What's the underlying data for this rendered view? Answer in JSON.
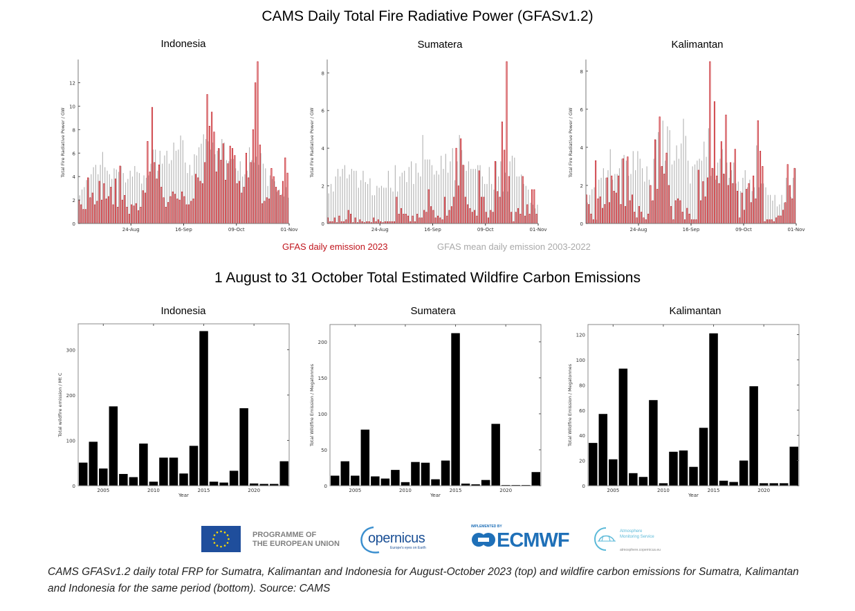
{
  "header": {
    "title": "CAMS Daily Total Fire Radiative Power (GFASv1.2)",
    "subtitle": "1 August to 31 October Total Estimated Wildfire Carbon Emissions"
  },
  "legend": {
    "series_2023": "GFAS daily emission 2023",
    "series_mean": "GFAS mean daily emission 2003-2022",
    "color_2023": "#c0141c",
    "color_2023_fill": "#e89a9c",
    "color_mean": "#b5b5b5"
  },
  "logos": {
    "eu_line1": "PROGRAMME OF",
    "eu_line2": "THE EUROPEAN UNION",
    "copernicus": "opernicus",
    "copernicus_tag": "Europe's eyes on Earth",
    "ecmwf_impl": "IMPLEMENTED BY",
    "ecmwf": "ECMWF",
    "ams_line1": "Atmosphere",
    "ams_line2": "Monitoring Service",
    "ams_url": "atmosphere.copernicus.eu"
  },
  "caption": "CAMS GFASv1.2 daily total FRP for Sumatra, Kalimantan and Indonesia for August-October 2023 (top) and wildfire carbon emissions for Sumatra, Kalimantan and Indonesia for the same period (bottom). Source: CAMS",
  "chart_data": [
    {
      "type": "bar",
      "title": "Indonesia",
      "xlabel": "",
      "ylabel": "Total Fire Radiative Power / GW",
      "ylim": [
        0,
        13.8
      ],
      "yticks": [
        0,
        2,
        4,
        6,
        8,
        10,
        12
      ],
      "xticks": [
        {
          "label": "24-Aug",
          "day": 23
        },
        {
          "label": "16-Sep",
          "day": 46
        },
        {
          "label": "09-Oct",
          "day": 69
        },
        {
          "label": "01-Nov",
          "day": 92
        }
      ],
      "days": 92,
      "series": [
        {
          "name": "GFAS mean daily emission 2003-2022",
          "values": [
            2.4,
            2.9,
            3.1,
            3.7,
            3.9,
            4.2,
            4.8,
            5.0,
            4.2,
            5.0,
            6.1,
            4.8,
            4.5,
            4.2,
            3.8,
            4.7,
            4.6,
            4.4,
            4.9,
            4.3,
            3.5,
            3.8,
            4.5,
            4.0,
            4.9,
            4.4,
            4.3,
            3.4,
            4.1,
            3.9,
            4.1,
            5.1,
            6.3,
            6.3,
            4.5,
            6.2,
            5.1,
            5.8,
            6.2,
            5.1,
            5.4,
            6.9,
            6.2,
            6.3,
            7.5,
            7.1,
            5.2,
            4.3,
            5.0,
            4.1,
            5.9,
            5.8,
            6.5,
            6.8,
            7.6,
            7.2,
            7.0,
            6.3,
            6.9,
            5.9,
            6.2,
            6.4,
            7.2,
            6.9,
            5.4,
            5.3,
            5.5,
            5.5,
            4.7,
            4.5,
            5.3,
            4.0,
            4.2,
            4.5,
            6.5,
            5.4,
            5.2,
            5.7,
            5.0,
            6.0,
            5.1,
            4.7,
            3.2,
            4.1,
            3.8,
            3.6,
            2.7,
            2.9,
            2.5,
            2.3,
            3.1,
            2.2
          ]
        },
        {
          "name": "GFAS daily emission 2023",
          "values": [
            2.0,
            1.6,
            1.2,
            1.2,
            3.9,
            2.2,
            2.6,
            1.6,
            1.9,
            3.6,
            2.0,
            3.4,
            2.1,
            2.3,
            3.1,
            1.6,
            3.8,
            1.4,
            4.9,
            2.0,
            2.4,
            1.4,
            0.8,
            1.6,
            1.5,
            1.7,
            1.1,
            1.4,
            2.8,
            2.6,
            7.0,
            4.4,
            9.9,
            5.2,
            3.8,
            5.0,
            3.1,
            2.2,
            1.4,
            1.8,
            2.3,
            2.7,
            2.5,
            2.1,
            2.0,
            2.7,
            2.3,
            1.6,
            1.6,
            1.9,
            2.1,
            4.2,
            3.9,
            3.6,
            3.4,
            5.2,
            11.0,
            8.3,
            9.5,
            7.8,
            4.4,
            6.4,
            5.4,
            6.8,
            3.7,
            5.1,
            6.6,
            6.4,
            5.8,
            3.4,
            3.6,
            2.6,
            3.1,
            6.0,
            3.9,
            5.2,
            8.0,
            12.0,
            13.8,
            6.7,
            1.7,
            1.9,
            2.2,
            2.1,
            4.7,
            4.0,
            3.1,
            2.8,
            2.4,
            3.6,
            5.6,
            4.3
          ]
        }
      ]
    },
    {
      "type": "bar",
      "title": "Sumatera",
      "xlabel": "",
      "ylabel": "Total Fire Radiative Power / GW",
      "ylim": [
        0,
        8.6
      ],
      "yticks": [
        0,
        2,
        4,
        6,
        8
      ],
      "xticks": [
        {
          "label": "24-Aug",
          "day": 23
        },
        {
          "label": "16-Sep",
          "day": 46
        },
        {
          "label": "09-Oct",
          "day": 69
        },
        {
          "label": "01-Nov",
          "day": 92
        }
      ],
      "days": 92,
      "series": [
        {
          "name": "GFAS mean daily emission 2003-2022",
          "values": [
            1.6,
            2.1,
            1.7,
            2.5,
            2.9,
            2.5,
            2.9,
            3.1,
            2.4,
            2.6,
            2.9,
            2.8,
            2.8,
            1.9,
            2.3,
            2.8,
            2.2,
            2.1,
            2.4,
            1.5,
            1.5,
            2.0,
            1.9,
            2.0,
            1.9,
            1.9,
            2.8,
            1.9,
            1.7,
            3.1,
            1.7,
            2.5,
            2.7,
            2.8,
            2.2,
            3.0,
            3.3,
            2.1,
            3.2,
            2.7,
            2.5,
            4.7,
            3.4,
            3.4,
            3.4,
            3.1,
            2.6,
            2.8,
            2.6,
            3.6,
            2.9,
            3.7,
            2.7,
            3.3,
            4.0,
            2.3,
            3.3,
            4.7,
            3.9,
            3.1,
            2.8,
            3.3,
            2.9,
            2.9,
            2.9,
            3.1,
            3.1,
            2.5,
            2.1,
            2.1,
            3.0,
            2.1,
            1.8,
            3.3,
            2.5,
            3.3,
            1.7,
            2.7,
            1.7,
            3.3,
            3.6,
            3.5,
            2.5,
            2.5,
            2.6,
            2.1,
            2.0,
            1.8,
            1.1,
            1.0,
            0.8,
            1.0
          ]
        },
        {
          "name": "GFAS daily emission 2023",
          "values": [
            0.3,
            0.1,
            0.1,
            0.3,
            0.05,
            0.4,
            0.1,
            0.1,
            0.2,
            0.7,
            0.5,
            0.05,
            0.3,
            0.05,
            0.2,
            0.1,
            0.05,
            0.1,
            0.1,
            0.05,
            0.3,
            0.1,
            0.2,
            0.1,
            0.05,
            0.1,
            0.1,
            0.1,
            0.1,
            0.1,
            1.4,
            0.5,
            0.8,
            0.5,
            0.5,
            0.4,
            0.1,
            0.4,
            0.1,
            0.5,
            0.3,
            0.3,
            0.7,
            0.6,
            1.8,
            0.9,
            0.7,
            0.3,
            0.4,
            0.3,
            0.2,
            1.4,
            0.4,
            0.7,
            0.9,
            1.4,
            4.0,
            2.0,
            4.5,
            3.1,
            1.4,
            1.0,
            0.8,
            0.6,
            0.7,
            0.4,
            2.8,
            1.4,
            1.4,
            0.6,
            0.3,
            0.7,
            0.6,
            3.3,
            1.7,
            1.4,
            5.4,
            3.9,
            8.6,
            2.5,
            0.6,
            0.1,
            0.6,
            0.8,
            0.5,
            2.5,
            0.4,
            1.0,
            0.5,
            1.8,
            1.8,
            0.5
          ]
        }
      ]
    },
    {
      "type": "bar",
      "title": "Kalimantan",
      "xlabel": "",
      "ylabel": "Total Fire Radiative Power / GW",
      "ylim": [
        0,
        8.5
      ],
      "yticks": [
        0,
        2,
        4,
        6,
        8
      ],
      "xticks": [
        {
          "label": "24-Aug",
          "day": 23
        },
        {
          "label": "16-Sep",
          "day": 46
        },
        {
          "label": "09-Oct",
          "day": 69
        },
        {
          "label": "01-Nov",
          "day": 92
        }
      ],
      "days": 92,
      "series": [
        {
          "name": "GFAS mean daily emission 2003-2022",
          "values": [
            1.1,
            1.5,
            1.8,
            1.9,
            0.2,
            2.3,
            2.4,
            2.9,
            2.4,
            2.8,
            3.9,
            2.3,
            2.6,
            2.6,
            2.9,
            3.4,
            3.6,
            3.3,
            2.5,
            2.6,
            3.8,
            2.8,
            3.8,
            3.4,
            2.9,
            2.2,
            3.0,
            2.3,
            1.2,
            3.4,
            4.4,
            4.8,
            3.0,
            5.4,
            3.3,
            5.1,
            4.9,
            3.1,
            3.3,
            4.1,
            3.4,
            4.2,
            5.5,
            4.6,
            3.3,
            2.1,
            3.0,
            3.1,
            3.3,
            3.4,
            3.3,
            4.3,
            3.5,
            5.0,
            2.5,
            2.9,
            2.3,
            3.2,
            3.4,
            3.9,
            2.6,
            3.2,
            2.4,
            2.8,
            3.2,
            2.1,
            2.2,
            1.7,
            2.4,
            2.8,
            1.9,
            2.3,
            1.7,
            1.9,
            4.1,
            1.9,
            2.1,
            2.1,
            1.9,
            1.5,
            1.5,
            1.2,
            1.5,
            0.9,
            1.0,
            1.5,
            1.1,
            2.4,
            2.0,
            1.4,
            2.4,
            2.9
          ]
        },
        {
          "name": "GFAS daily emission 2023",
          "values": [
            1.5,
            1.0,
            0.5,
            0.2,
            3.3,
            1.3,
            1.4,
            0.8,
            1.0,
            2.4,
            1.1,
            2.5,
            1.7,
            1.6,
            2.5,
            1.0,
            3.4,
            0.9,
            3.5,
            1.2,
            1.5,
            0.6,
            0.3,
            0.9,
            0.6,
            0.3,
            0.2,
            0.5,
            2.0,
            1.2,
            4.4,
            1.8,
            5.6,
            3.0,
            2.6,
            3.7,
            2.0,
            0.9,
            0.2,
            1.2,
            1.3,
            1.2,
            0.6,
            0.2,
            0.8,
            0.5,
            0.2,
            0.2,
            0.2,
            2.8,
            1.2,
            2.2,
            1.4,
            2.4,
            8.5,
            2.9,
            6.4,
            2.5,
            2.1,
            4.3,
            2.6,
            5.7,
            2.0,
            3.2,
            2.1,
            3.9,
            1.7,
            0.3,
            1.6,
            0.7,
            1.8,
            2.1,
            1.1,
            2.5,
            1.3,
            5.4,
            3.8,
            3.0,
            0.1,
            0.2,
            0.2,
            0.2,
            0.1,
            0.3,
            0.4,
            0.4,
            0.7,
            1.1,
            3.1,
            2.0,
            1.3,
            2.9
          ]
        }
      ]
    },
    {
      "type": "bar",
      "title": "Indonesia",
      "xlabel": "Year",
      "ylabel": "Total wildfire emission / Mt C",
      "ylim": [
        0,
        357
      ],
      "yticks": [
        0,
        100,
        200,
        300
      ],
      "xticks": [
        2005,
        2010,
        2015,
        2020
      ],
      "categories": [
        2003,
        2004,
        2005,
        2006,
        2007,
        2008,
        2009,
        2010,
        2011,
        2012,
        2013,
        2014,
        2015,
        2016,
        2017,
        2018,
        2019,
        2020,
        2021,
        2022,
        2023
      ],
      "values": [
        51,
        97,
        38,
        175,
        26,
        19,
        93,
        9,
        62,
        62,
        27,
        88,
        341,
        9,
        7,
        33,
        171,
        5,
        4,
        4,
        54
      ]
    },
    {
      "type": "bar",
      "title": "Sumatera",
      "xlabel": "Year",
      "ylabel": "Total Wildfire Emission / Megatonnes",
      "ylim": [
        0,
        224
      ],
      "yticks": [
        0,
        50,
        100,
        150,
        200
      ],
      "xticks": [
        2005,
        2010,
        2015,
        2020
      ],
      "categories": [
        2003,
        2004,
        2005,
        2006,
        2007,
        2008,
        2009,
        2010,
        2011,
        2012,
        2013,
        2014,
        2015,
        2016,
        2017,
        2018,
        2019,
        2020,
        2021,
        2022,
        2023
      ],
      "values": [
        14,
        34,
        14,
        78,
        13,
        10,
        22,
        5,
        33,
        32,
        9,
        35,
        212,
        3,
        2,
        8,
        86,
        1,
        1,
        1,
        19
      ]
    },
    {
      "type": "bar",
      "title": "Kalimantan",
      "xlabel": "Year",
      "ylabel": "Total Wildfire Emission / Megatonnes",
      "ylim": [
        0,
        128
      ],
      "yticks": [
        0,
        20,
        40,
        60,
        80,
        100,
        120
      ],
      "xticks": [
        2005,
        2010,
        2015,
        2020
      ],
      "categories": [
        2003,
        2004,
        2005,
        2006,
        2007,
        2008,
        2009,
        2010,
        2011,
        2012,
        2013,
        2014,
        2015,
        2016,
        2017,
        2018,
        2019,
        2020,
        2021,
        2022,
        2023
      ],
      "values": [
        34,
        57,
        21,
        93,
        10,
        7,
        68,
        2,
        27,
        28,
        15,
        46,
        121,
        4,
        3,
        20,
        79,
        2,
        2,
        2,
        31
      ]
    }
  ]
}
